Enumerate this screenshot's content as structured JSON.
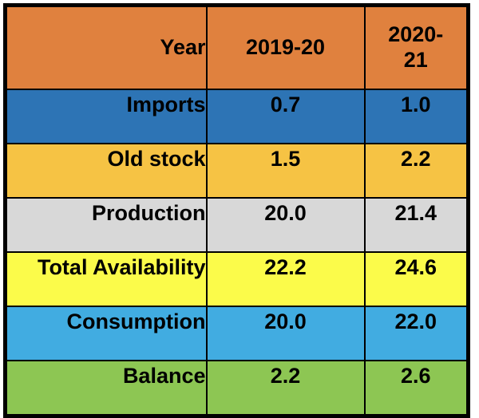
{
  "table": {
    "header": {
      "col1": "Year",
      "col2": "2019-20",
      "col3": "2020-21",
      "col3_lines": {
        "0": "2020-",
        "1": "21"
      },
      "bg": "#E0813E"
    },
    "rows": [
      {
        "label": "Imports",
        "v2019_20": "0.7",
        "v2020_21": "1.0",
        "bg": "#2D74B5"
      },
      {
        "label": "Old stock",
        "v2019_20": "1.5",
        "v2020_21": "2.2",
        "bg": "#F6C344"
      },
      {
        "label": "Production",
        "v2019_20": "20.0",
        "v2020_21": "21.4",
        "bg": "#D8D8D8"
      },
      {
        "label": "Total Availability",
        "v2019_20": "22.2",
        "v2020_21": "24.6",
        "bg": "#FBFB4A"
      },
      {
        "label": "Consumption",
        "v2019_20": "20.0",
        "v2020_21": "22.0",
        "bg": "#41ACE1"
      },
      {
        "label": "Balance",
        "v2019_20": "2.2",
        "v2020_21": "2.6",
        "bg": "#8DC653"
      }
    ],
    "border_color": "#000000",
    "text_color": "#000000"
  },
  "chart_data": {
    "type": "table",
    "title": "",
    "categories": [
      "2019-20",
      "2020-21"
    ],
    "series": [
      {
        "name": "Imports",
        "values": [
          0.7,
          1.0
        ]
      },
      {
        "name": "Old stock",
        "values": [
          1.5,
          2.2
        ]
      },
      {
        "name": "Production",
        "values": [
          20.0,
          21.4
        ]
      },
      {
        "name": "Total Availability",
        "values": [
          22.2,
          24.6
        ]
      },
      {
        "name": "Consumption",
        "values": [
          20.0,
          22.0
        ]
      },
      {
        "name": "Balance",
        "values": [
          2.2,
          2.6
        ]
      }
    ],
    "layout": {
      "header_row": "Year | 2019-20 | 2020-21",
      "grid": "on",
      "legend": "none"
    }
  }
}
